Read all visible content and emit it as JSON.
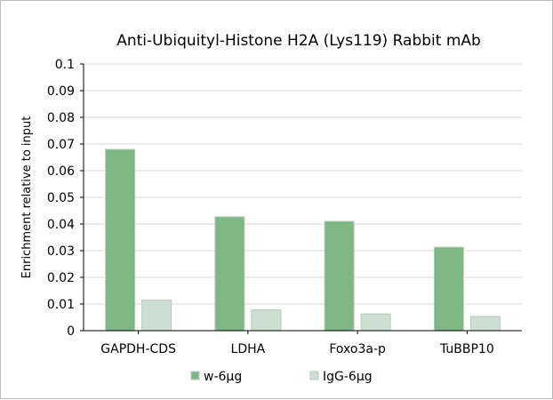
{
  "chart_data": {
    "type": "bar",
    "title": "Anti-Ubiquityl-Histone H2A (Lys119) Rabbit mAb",
    "xlabel": "",
    "ylabel": "Enrichment relative to input",
    "ylim": [
      0,
      0.1
    ],
    "yticks": [
      "0",
      "0.01",
      "0.02",
      "0.03",
      "0.04",
      "0.05",
      "0.06",
      "0.07",
      "0.08",
      "0.09",
      "0.1"
    ],
    "grid": true,
    "legend_position": "bottom",
    "categories": [
      "GAPDH-CDS",
      "LDHA",
      "Foxo3a-p",
      "TuBBP10"
    ],
    "series": [
      {
        "name": "w-6μg",
        "color": "#7db784",
        "values": [
          0.068,
          0.0427,
          0.041,
          0.0313
        ]
      },
      {
        "name": "IgG-6μg",
        "color": "#ccdfd0",
        "values": [
          0.0115,
          0.0078,
          0.0063,
          0.0053
        ]
      }
    ]
  }
}
